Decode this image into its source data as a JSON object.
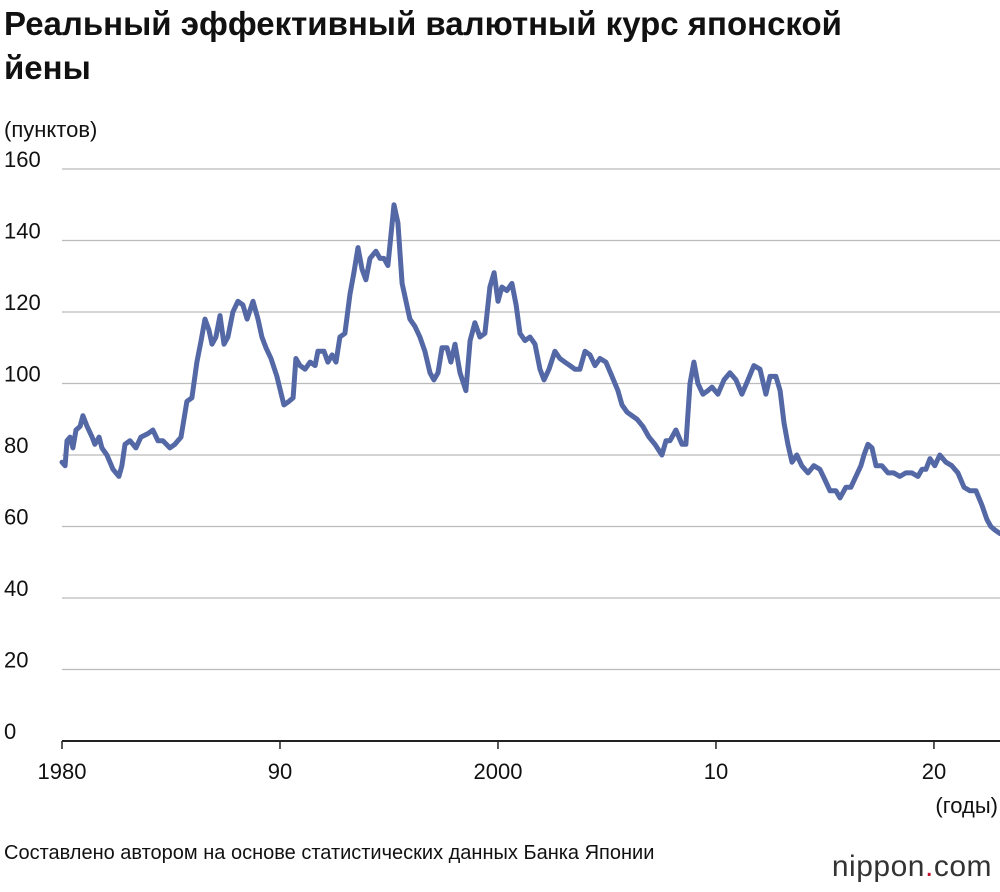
{
  "chart_data": {
    "type": "line",
    "title": "Реальный эффективный валютный курс японской йены",
    "y_label": "(пунктов)",
    "x_label": "(годы)",
    "source": "Составлено автором на основе статистических данных Банка Японии",
    "logo": "nippon.com",
    "color": "#5468a6",
    "grid": true,
    "xlim": [
      1980,
      2023.03
    ],
    "xticks": [
      1980,
      {
        "value": 1990,
        "label": "90"
      },
      2000,
      {
        "value": 2010,
        "label": "10"
      },
      {
        "value": 2020,
        "label": "20"
      }
    ],
    "ylim": [
      0,
      160
    ],
    "yticks": [
      0,
      20,
      40,
      60,
      80,
      100,
      120,
      140,
      160
    ],
    "x": [
      1980.0,
      1980.14,
      1980.23,
      1980.37,
      1980.5,
      1980.64,
      1980.83,
      1980.96,
      1981.15,
      1981.38,
      1981.51,
      1981.7,
      1981.83,
      1982.06,
      1982.34,
      1982.61,
      1982.75,
      1982.89,
      1983.12,
      1983.39,
      1983.62,
      1983.94,
      1984.17,
      1984.4,
      1984.63,
      1984.95,
      1985.18,
      1985.46,
      1985.73,
      1985.96,
      1986.19,
      1986.38,
      1986.56,
      1986.74,
      1986.88,
      1987.06,
      1987.25,
      1987.43,
      1987.61,
      1987.84,
      1988.07,
      1988.3,
      1988.49,
      1988.76,
      1988.99,
      1989.17,
      1989.36,
      1989.59,
      1989.86,
      1990.18,
      1990.41,
      1990.6,
      1990.73,
      1990.92,
      1991.15,
      1991.38,
      1991.61,
      1991.74,
      1992.02,
      1992.2,
      1992.39,
      1992.57,
      1992.75,
      1992.98,
      1993.21,
      1993.39,
      1993.58,
      1993.76,
      1993.94,
      1994.13,
      1994.4,
      1994.59,
      1994.77,
      1994.95,
      1995.23,
      1995.41,
      1995.6,
      1995.78,
      1995.96,
      1996.19,
      1996.42,
      1996.65,
      1996.88,
      1997.06,
      1997.25,
      1997.43,
      1997.66,
      1997.84,
      1998.03,
      1998.26,
      1998.53,
      1998.72,
      1998.94,
      1999.17,
      1999.4,
      1999.63,
      1999.82,
      2000.0,
      2000.18,
      2000.41,
      2000.64,
      2000.83,
      2001.01,
      2001.24,
      2001.47,
      2001.7,
      2001.93,
      2002.11,
      2002.34,
      2002.61,
      2002.84,
      2003.07,
      2003.3,
      2003.53,
      2003.76,
      2003.99,
      2004.22,
      2004.45,
      2004.68,
      2004.95,
      2005.23,
      2005.5,
      2005.69,
      2005.92,
      2006.15,
      2006.38,
      2006.65,
      2006.93,
      2007.2,
      2007.52,
      2007.71,
      2007.89,
      2008.16,
      2008.44,
      2008.62,
      2008.81,
      2008.99,
      2009.17,
      2009.4,
      2009.63,
      2009.82,
      2010.09,
      2010.37,
      2010.64,
      2010.92,
      2011.19,
      2011.47,
      2011.74,
      2012.02,
      2012.29,
      2012.48,
      2012.75,
      2012.94,
      2013.12,
      2013.3,
      2013.49,
      2013.71,
      2013.94,
      2014.22,
      2014.49,
      2014.77,
      2015.0,
      2015.23,
      2015.5,
      2015.69,
      2015.96,
      2016.19,
      2016.42,
      2016.65,
      2016.79,
      2016.97,
      2017.16,
      2017.34,
      2017.61,
      2017.89,
      2018.16,
      2018.44,
      2018.71,
      2018.99,
      2019.27,
      2019.45,
      2019.63,
      2019.82,
      2020.04,
      2020.27,
      2020.55,
      2020.82,
      2021.1,
      2021.38,
      2021.65,
      2021.93,
      2022.2,
      2022.43,
      2022.61,
      2022.8,
      2023.03
    ],
    "values": [
      78,
      77,
      84,
      85,
      82,
      87,
      88,
      91,
      88,
      85,
      83,
      85,
      82,
      80,
      76,
      74,
      77,
      83,
      84,
      82,
      85,
      86,
      87,
      84,
      84,
      82,
      83,
      85,
      95,
      96,
      106,
      112,
      118,
      115,
      111,
      113,
      119,
      111,
      113,
      120,
      123,
      122,
      118,
      123,
      118,
      113,
      110,
      107,
      102,
      94,
      95,
      96,
      107,
      105,
      104,
      106,
      105,
      109,
      109,
      106,
      108,
      106,
      113,
      114,
      125,
      131,
      138,
      132,
      129,
      135,
      137,
      135,
      135,
      133,
      150,
      145,
      128,
      123,
      118,
      116,
      113,
      109,
      103,
      101,
      103,
      110,
      110,
      106,
      111,
      103,
      98,
      112,
      117,
      113,
      114,
      127,
      131,
      123,
      127,
      126,
      128,
      122,
      114,
      112,
      113,
      111,
      104,
      101,
      104,
      109,
      107,
      106,
      105,
      104,
      104,
      109,
      108,
      105,
      107,
      106,
      102,
      98,
      94,
      92,
      91,
      90,
      88,
      85,
      83,
      80,
      84,
      84,
      87,
      83,
      83,
      100,
      106,
      100,
      97,
      98,
      99,
      97,
      101,
      103,
      101,
      97,
      101,
      105,
      104,
      97,
      102,
      102,
      98,
      89,
      83,
      78,
      80,
      77,
      75,
      77,
      76,
      73,
      70,
      70,
      68,
      71,
      71,
      74,
      77,
      80,
      83,
      82,
      77,
      77,
      75,
      75,
      74,
      75,
      75,
      74,
      76,
      76,
      79,
      77,
      80,
      78,
      77,
      75,
      71,
      70,
      70,
      66,
      62,
      60,
      59,
      58
    ]
  }
}
